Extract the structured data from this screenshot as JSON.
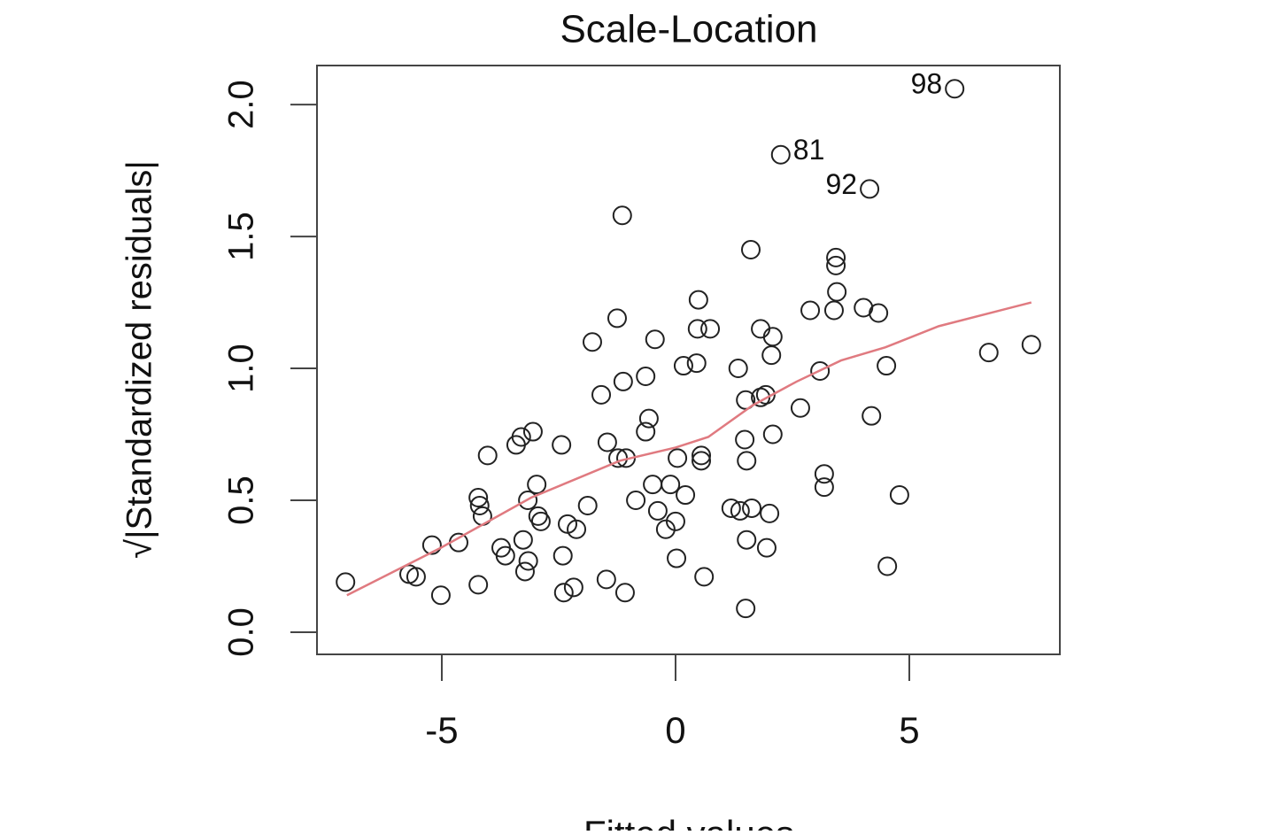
{
  "chart_data": {
    "type": "scatter",
    "title": "Scale-Location",
    "x_label": "Fitted values",
    "y_label": "√|Standardized residuals|",
    "x": [
      -7.06,
      -5.7,
      -5.55,
      -5.21,
      -5.02,
      -4.64,
      -4.22,
      -4.22,
      -4.19,
      -4.13,
      -4.02,
      -3.73,
      -3.64,
      -3.41,
      -3.3,
      -3.26,
      -3.22,
      -3.15,
      -3.16,
      -3.05,
      -2.97,
      -2.94,
      -2.88,
      -2.44,
      -2.41,
      -2.39,
      -2.31,
      -2.18,
      -2.12,
      -1.88,
      -1.78,
      -1.59,
      -1.48,
      -1.46,
      -1.25,
      -1.23,
      -1.14,
      -1.12,
      -1.08,
      -1.06,
      -0.85,
      -0.64,
      -0.64,
      -0.57,
      -0.44,
      -0.49,
      -0.38,
      -0.21,
      -0.11,
      0.0,
      0.02,
      0.04,
      0.17,
      0.21,
      0.45,
      0.49,
      0.47,
      0.55,
      0.55,
      0.61,
      0.74,
      1.19,
      1.34,
      1.38,
      1.48,
      1.5,
      1.52,
      1.52,
      1.5,
      1.61,
      1.63,
      1.82,
      1.82,
      1.93,
      1.95,
      2.01,
      2.05,
      2.08,
      2.08,
      2.25,
      2.67,
      2.88,
      3.09,
      3.18,
      3.18,
      3.39,
      3.43,
      3.43,
      3.45,
      4.02,
      4.15,
      4.19,
      4.34,
      4.51,
      4.53,
      4.79,
      5.97,
      6.7,
      7.61
    ],
    "y": [
      0.19,
      0.22,
      0.21,
      0.33,
      0.14,
      0.34,
      0.18,
      0.51,
      0.48,
      0.44,
      0.67,
      0.32,
      0.29,
      0.71,
      0.74,
      0.35,
      0.23,
      0.27,
      0.5,
      0.76,
      0.56,
      0.44,
      0.42,
      0.71,
      0.29,
      0.15,
      0.41,
      0.17,
      0.39,
      0.48,
      1.1,
      0.9,
      0.2,
      0.72,
      1.19,
      0.66,
      1.58,
      0.95,
      0.15,
      0.66,
      0.5,
      0.97,
      0.76,
      0.81,
      1.11,
      0.56,
      0.46,
      0.39,
      0.56,
      0.42,
      0.28,
      0.66,
      1.01,
      0.52,
      1.02,
      1.26,
      1.15,
      0.67,
      0.65,
      0.21,
      1.15,
      0.47,
      1.0,
      0.46,
      0.73,
      0.09,
      0.65,
      0.35,
      0.88,
      1.45,
      0.47,
      1.15,
      0.89,
      0.9,
      0.32,
      0.45,
      1.05,
      1.12,
      0.75,
      1.81,
      0.85,
      1.22,
      0.99,
      0.6,
      0.55,
      1.22,
      1.42,
      1.39,
      1.29,
      1.23,
      1.68,
      0.82,
      1.21,
      1.01,
      0.25,
      0.52,
      2.06,
      1.06,
      1.09
    ],
    "point_labels": [
      null,
      null,
      null,
      null,
      null,
      null,
      null,
      null,
      null,
      null,
      null,
      null,
      null,
      null,
      null,
      null,
      null,
      null,
      null,
      null,
      null,
      null,
      null,
      null,
      null,
      null,
      null,
      null,
      null,
      null,
      null,
      null,
      null,
      null,
      null,
      null,
      null,
      null,
      null,
      null,
      null,
      null,
      null,
      null,
      null,
      null,
      null,
      null,
      null,
      null,
      null,
      null,
      null,
      null,
      null,
      null,
      null,
      null,
      null,
      null,
      null,
      null,
      null,
      null,
      null,
      null,
      null,
      null,
      null,
      null,
      null,
      null,
      null,
      null,
      null,
      null,
      null,
      null,
      null,
      "81",
      null,
      null,
      null,
      null,
      null,
      null,
      null,
      null,
      null,
      null,
      "92",
      null,
      null,
      null,
      null,
      null,
      "98",
      null,
      null
    ],
    "color": "#222222",
    "smooth": {
      "color": "#e07a80",
      "x": [
        -7.03,
        -5.02,
        -3.09,
        -1.19,
        0.0,
        0.7,
        1.65,
        2.59,
        3.54,
        4.49,
        5.63,
        7.61
      ],
      "y": [
        0.14,
        0.32,
        0.51,
        0.65,
        0.7,
        0.74,
        0.86,
        0.95,
        1.03,
        1.08,
        1.16,
        1.25
      ]
    },
    "xlim": [
      -7.67,
      8.22
    ],
    "ylim": [
      -0.084,
      2.148
    ],
    "xticks": [
      -5,
      0,
      5
    ],
    "yticks": [
      {
        "value": 0,
        "label": "0.0"
      },
      0.5,
      {
        "value": 1,
        "label": "1.0"
      },
      1.5,
      {
        "value": 2,
        "label": "2.0"
      }
    ]
  }
}
